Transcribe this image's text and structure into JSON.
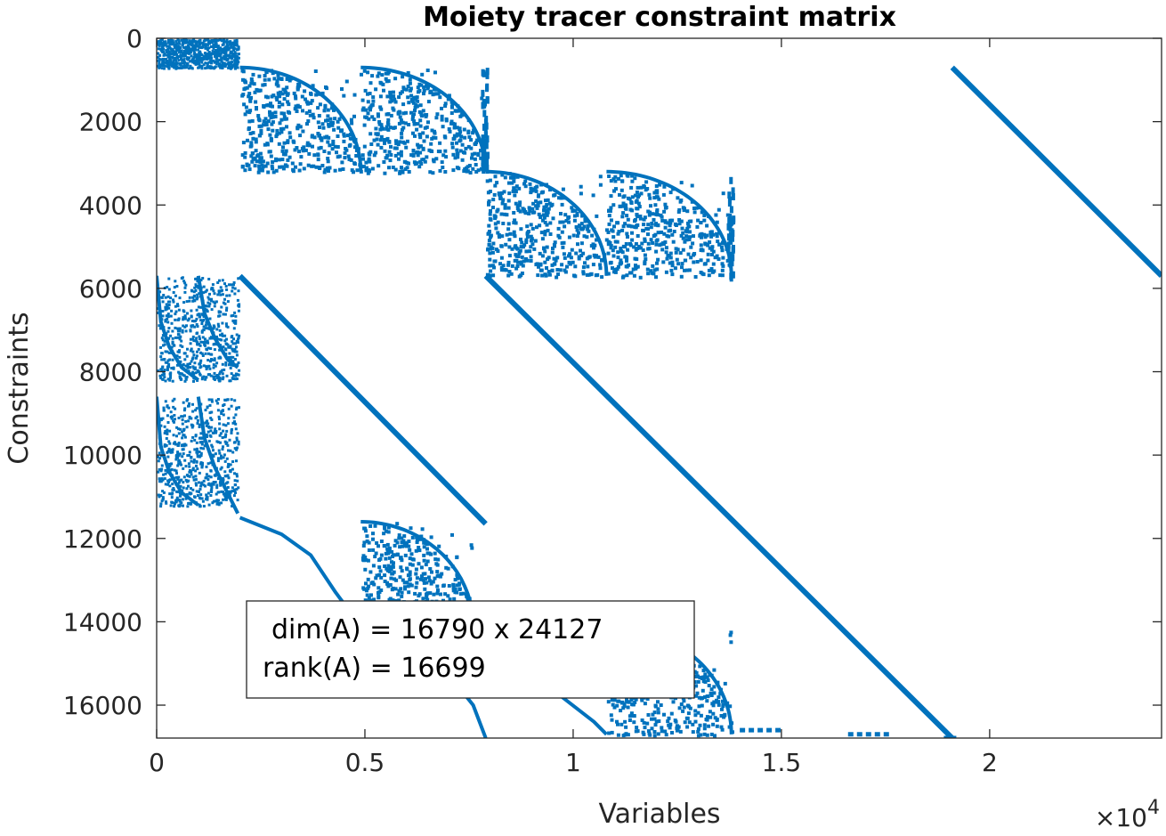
{
  "chart_data": {
    "type": "scatter",
    "title": "Moiety tracer constraint matrix",
    "xlabel": "Variables",
    "ylabel": "Constraints",
    "x_exponent_label": "×10",
    "x_exponent_power": "4",
    "xlim": [
      0,
      24127
    ],
    "ylim": [
      0,
      16790
    ],
    "y_reversed": true,
    "grid": false,
    "x_ticks": [
      {
        "value": 0,
        "label": "0"
      },
      {
        "value": 5000,
        "label": "0.5"
      },
      {
        "value": 10000,
        "label": "1"
      },
      {
        "value": 15000,
        "label": "1.5"
      },
      {
        "value": 20000,
        "label": "2"
      }
    ],
    "y_ticks": [
      {
        "value": 0,
        "label": "0"
      },
      {
        "value": 2000,
        "label": "2000"
      },
      {
        "value": 4000,
        "label": "4000"
      },
      {
        "value": 6000,
        "label": "6000"
      },
      {
        "value": 8000,
        "label": "8000"
      },
      {
        "value": 10000,
        "label": "10000"
      },
      {
        "value": 12000,
        "label": "12000"
      },
      {
        "value": 14000,
        "label": "14000"
      },
      {
        "value": 16000,
        "label": "16000"
      }
    ],
    "marker_color": "#0072BD",
    "annotation": {
      "lines": [
        "dim(A) = 16790 x 24127",
        "rank(A) = 16699"
      ],
      "x": 2200,
      "y": 13800
    },
    "diagonals": [
      {
        "x": [
          2000,
          7900
        ],
        "y": [
          5700,
          11650
        ]
      },
      {
        "x": [
          7900,
          19100
        ],
        "y": [
          5700,
          16790
        ]
      },
      {
        "x": [
          19100,
          24127
        ],
        "y": [
          700,
          5700
        ]
      }
    ],
    "curves": [
      {
        "x": [
          2000,
          3000,
          3700,
          4300,
          4750,
          4900
        ],
        "y": [
          11500,
          11900,
          12400,
          13300,
          13900,
          14000
        ]
      },
      {
        "x": [
          4900,
          6000,
          6800,
          7600,
          7900
        ],
        "y": [
          14000,
          14300,
          15000,
          16000,
          16790
        ]
      },
      {
        "x": [
          7900,
          8800,
          9600,
          10500,
          10800
        ],
        "y": [
          15000,
          15300,
          15700,
          16400,
          16700
        ]
      },
      {
        "x": [
          0,
          100,
          300,
          600,
          1000
        ],
        "y": [
          5700,
          6800,
          7400,
          7900,
          8200
        ]
      },
      {
        "x": [
          1000,
          1150,
          1400,
          1700,
          1950
        ],
        "y": [
          5700,
          6600,
          7200,
          7700,
          7900
        ]
      },
      {
        "x": [
          0,
          100,
          300,
          600,
          1000
        ],
        "y": [
          8600,
          9800,
          10400,
          10900,
          11200
        ]
      },
      {
        "x": [
          1000,
          1150,
          1400,
          1700,
          1950
        ],
        "y": [
          8600,
          9600,
          10300,
          10900,
          11400
        ]
      }
    ],
    "blocks": [
      {
        "x": [
          2000,
          4900
        ],
        "y": [
          700,
          3200
        ]
      },
      {
        "x": [
          4900,
          7900
        ],
        "y": [
          700,
          3200
        ]
      },
      {
        "x": [
          7900,
          10800
        ],
        "y": [
          3200,
          5700
        ]
      },
      {
        "x": [
          10800,
          13800
        ],
        "y": [
          3200,
          5700
        ]
      },
      {
        "x": [
          4900,
          7600
        ],
        "y": [
          11600,
          14100
        ]
      },
      {
        "x": [
          10800,
          13800
        ],
        "y": [
          14100,
          16700
        ]
      }
    ],
    "dense_regions": [
      {
        "x": [
          0,
          1950
        ],
        "y": [
          0,
          700
        ]
      },
      {
        "x": [
          0,
          1950
        ],
        "y": [
          5700,
          8200
        ]
      },
      {
        "x": [
          0,
          1950
        ],
        "y": [
          8600,
          11200
        ]
      }
    ],
    "vertical_strips": [
      {
        "x": 7850,
        "y": [
          700,
          3200
        ]
      },
      {
        "x": 13750,
        "y": [
          3200,
          5700
        ]
      }
    ],
    "bottom_dashes": [
      {
        "x": [
          14000,
          15000
        ],
        "y": 16600
      },
      {
        "x": [
          16600,
          17600
        ],
        "y": 16700
      },
      {
        "x": [
          18900,
          19200
        ],
        "y": 16790
      }
    ]
  }
}
